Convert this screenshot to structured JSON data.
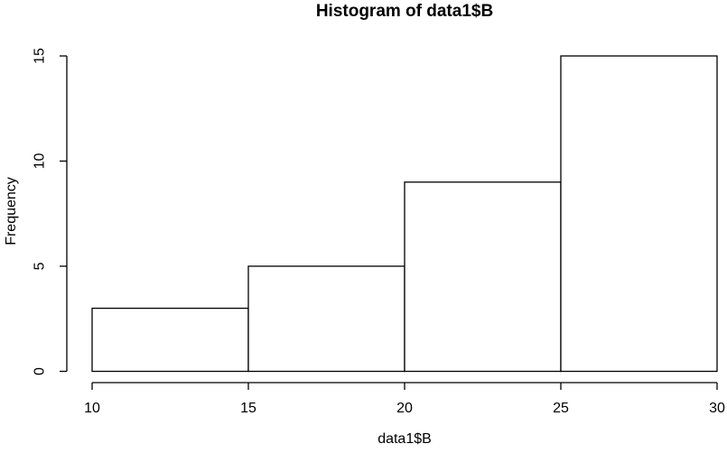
{
  "chart_data": {
    "type": "bar",
    "title": "Histogram of data1$B",
    "xlabel": "data1$B",
    "ylabel": "Frequency",
    "bin_edges": [
      10,
      15,
      20,
      25,
      30
    ],
    "frequencies": [
      3,
      5,
      9,
      15
    ],
    "x_ticks": [
      10,
      15,
      20,
      25,
      30
    ],
    "y_ticks": [
      0,
      5,
      10,
      15
    ],
    "xlim": [
      10,
      30
    ],
    "ylim": [
      0,
      15
    ],
    "grid": false,
    "legend": false,
    "bar_fill": "#ffffff",
    "bar_stroke": "#000000"
  },
  "colors": {
    "background": "#ffffff",
    "foreground": "#000000"
  }
}
